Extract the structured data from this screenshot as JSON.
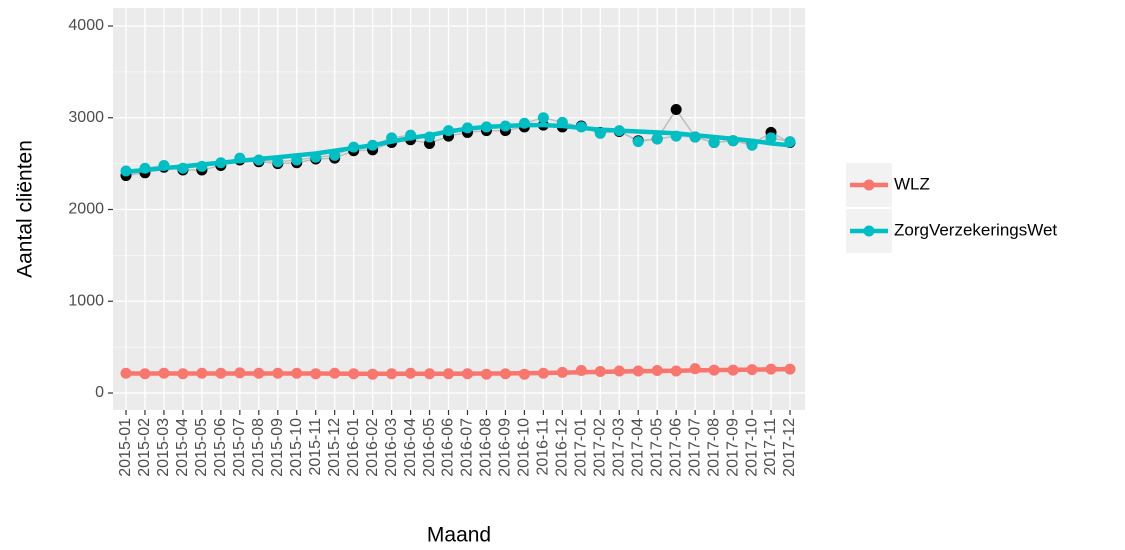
{
  "chart_data": {
    "type": "line",
    "x_label": "Maand",
    "y_label": "Aantal cliënten",
    "categories": [
      "2015-01",
      "2015-02",
      "2015-03",
      "2015-04",
      "2015-05",
      "2015-06",
      "2015-07",
      "2015-08",
      "2015-09",
      "2015-10",
      "2015-11",
      "2015-12",
      "2016-01",
      "2016-02",
      "2016-03",
      "2016-04",
      "2016-05",
      "2016-06",
      "2016-07",
      "2016-08",
      "2016-09",
      "2016-10",
      "2016-11",
      "2016-12",
      "2017-01",
      "2017-02",
      "2017-03",
      "2017-04",
      "2017-05",
      "2017-06",
      "2017-07",
      "2017-08",
      "2017-09",
      "2017-10",
      "2017-11",
      "2017-12"
    ],
    "series": [
      {
        "color": "#000000",
        "line_color": "#BEBEBE",
        "values": [
          2370,
          2400,
          2460,
          2430,
          2430,
          2480,
          2540,
          2520,
          2500,
          2510,
          2550,
          2560,
          2640,
          2650,
          2730,
          2760,
          2720,
          2800,
          2840,
          2860,
          2860,
          2900,
          2920,
          2900,
          2910,
          2840,
          2850,
          2750,
          2770,
          3090,
          2790,
          2730,
          2750,
          2710,
          2840,
          2730
        ]
      },
      {
        "name": "WLZ",
        "color": "#F8766D",
        "line_color": "#BEBEBE",
        "values": [
          215,
          210,
          215,
          210,
          215,
          215,
          220,
          215,
          215,
          215,
          210,
          215,
          210,
          205,
          210,
          215,
          210,
          210,
          210,
          205,
          210,
          205,
          215,
          225,
          245,
          235,
          240,
          240,
          245,
          240,
          265,
          250,
          250,
          255,
          260,
          260
        ],
        "trend": [
          212,
          212,
          212,
          212,
          212,
          212,
          212,
          212,
          212,
          212,
          212,
          211,
          210,
          210,
          210,
          210,
          210,
          210,
          211,
          212,
          213,
          215,
          218,
          222,
          226,
          230,
          234,
          237,
          240,
          243,
          246,
          249,
          252,
          255,
          257,
          260
        ]
      },
      {
        "name": "ZorgVerzekeringsWet",
        "color": "#00BFC4",
        "line_color": "#BEBEBE",
        "values": [
          2420,
          2450,
          2480,
          2450,
          2470,
          2510,
          2560,
          2540,
          2520,
          2540,
          2570,
          2590,
          2680,
          2700,
          2780,
          2810,
          2790,
          2860,
          2890,
          2900,
          2910,
          2940,
          3000,
          2950,
          2900,
          2830,
          2860,
          2740,
          2770,
          2800,
          2790,
          2730,
          2750,
          2700,
          2780,
          2740
        ],
        "trend": [
          2410,
          2430,
          2450,
          2470,
          2490,
          2510,
          2530,
          2550,
          2570,
          2590,
          2610,
          2640,
          2670,
          2700,
          2740,
          2780,
          2810,
          2850,
          2880,
          2900,
          2910,
          2920,
          2920,
          2910,
          2890,
          2870,
          2860,
          2850,
          2840,
          2830,
          2810,
          2790,
          2770,
          2750,
          2720,
          2700
        ]
      }
    ],
    "ylim": [
      0,
      4000
    ],
    "yticks": [
      0,
      1000,
      2000,
      3000,
      4000
    ],
    "yminor": [
      500,
      1500,
      2500,
      3500
    ],
    "grid": true,
    "legend": "right"
  }
}
